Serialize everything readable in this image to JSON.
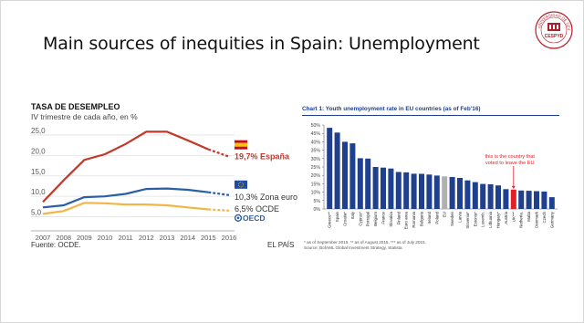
{
  "slide": {
    "title": "Main sources of inequities in Spain: Unemployment",
    "logo": {
      "text_top": "UNIVERSIDAD DE SEVILLA",
      "text_mid": "CESPYD",
      "icon": "university-seal-icon"
    }
  },
  "left_chart": {
    "title": "TASA DE DESEMPLEO",
    "subtitle": "IV trimestre de cada año, en %",
    "source": "Fuente: OCDE.",
    "publisher": "EL PAÍS",
    "oecd_logo_text": "OECD",
    "colors": {
      "spain": "#c0392b",
      "euro": "#2a5fa6",
      "oecd": "#f2b648",
      "grid": "#e0e0e0"
    },
    "end_labels": {
      "spain": "19,7% España",
      "euro": "10,3% Zona euro",
      "oecd": "6,5% OCDE"
    }
  },
  "right_chart": {
    "title": "Chart 1: Youth unemployment rate in EU countries (as of Feb'16)",
    "annotation": "this is the country that voted to leave the EU",
    "annotation_lines": [
      "this is the country that",
      "voted to leave the EU"
    ],
    "footnote_1": "* as of September 2015. ** as of August 2015. *** as of July 2015.",
    "footnote_2": "Source: BofAML Global Investment Strategy, Statista",
    "colors": {
      "bar": "#1f3f8f",
      "eu": "#b0b0b0",
      "uk": "#e31e24",
      "annotation": "#e31e24"
    }
  },
  "chart_data": [
    {
      "type": "line",
      "title": "TASA DE DESEMPLEO",
      "subtitle": "IV trimestre de cada año, en %",
      "x": [
        "2007",
        "2008",
        "2009",
        "2010",
        "2011",
        "2012",
        "2013",
        "2014",
        "2015",
        "2016"
      ],
      "x_values": [
        2007,
        2008,
        2009,
        2010,
        2011,
        2012,
        2013,
        2014,
        2015,
        2016
      ],
      "yticks": [
        "5,0",
        "10,0",
        "15,0",
        "20,0",
        "25,0"
      ],
      "ytick_values": [
        5,
        10,
        15,
        20,
        25
      ],
      "ylim": [
        2,
        27
      ],
      "grid": true,
      "legend": "right",
      "series": [
        {
          "name": "España",
          "color": "#c0392b",
          "dashed_from": 2015,
          "values": [
            8.6,
            13.9,
            18.9,
            20.3,
            22.8,
            25.8,
            25.8,
            23.7,
            21.5,
            19.7
          ]
        },
        {
          "name": "Zona euro",
          "color": "#2a5fa6",
          "dashed_from": 2015,
          "values": [
            7.3,
            7.8,
            9.8,
            10.0,
            10.6,
            11.8,
            11.9,
            11.6,
            11.0,
            10.3
          ]
        },
        {
          "name": "OCDE",
          "color": "#f2b648",
          "dashed_from": 2015,
          "values": [
            5.7,
            6.4,
            8.4,
            8.3,
            8.0,
            8.0,
            7.8,
            7.3,
            6.8,
            6.5
          ]
        }
      ]
    },
    {
      "type": "bar",
      "title": "Chart 1: Youth unemployment rate in EU countries (as of Feb'16)",
      "categories": [
        "Greece**",
        "Spain",
        "Croatia*",
        "Italy",
        "Cyprus*",
        "Portugal",
        "Belgium",
        "France",
        "Slovakia",
        "Finland",
        "Euro area",
        "Romania",
        "Bulgaria",
        "Ireland",
        "Poland",
        "EU",
        "Sweden",
        "Latvia",
        "Slovenia*",
        "Estonia*",
        "Luxemb.",
        "Lithuania",
        "Hungary*",
        "Austria",
        "UK***",
        "Netherla.",
        "Malta",
        "Denmark",
        "Czech",
        "Germany"
      ],
      "values": [
        48.3,
        45.5,
        40.0,
        39.1,
        30.2,
        30.0,
        25.0,
        24.6,
        24.1,
        22.0,
        21.8,
        21.0,
        20.9,
        20.5,
        19.9,
        19.4,
        19.0,
        18.5,
        17.0,
        16.0,
        14.9,
        14.7,
        14.0,
        11.8,
        11.5,
        11.0,
        10.8,
        10.6,
        10.4,
        7.0
      ],
      "highlight": {
        "EU": "#b0b0b0",
        "UK***": "#e31e24"
      },
      "yticks": [
        "0%",
        "5%",
        "10%",
        "15%",
        "20%",
        "25%",
        "30%",
        "35%",
        "40%",
        "45%",
        "50%"
      ],
      "ytick_values": [
        0,
        5,
        10,
        15,
        20,
        25,
        30,
        35,
        40,
        45,
        50
      ],
      "ylim": [
        0,
        50
      ],
      "grid": false
    }
  ]
}
